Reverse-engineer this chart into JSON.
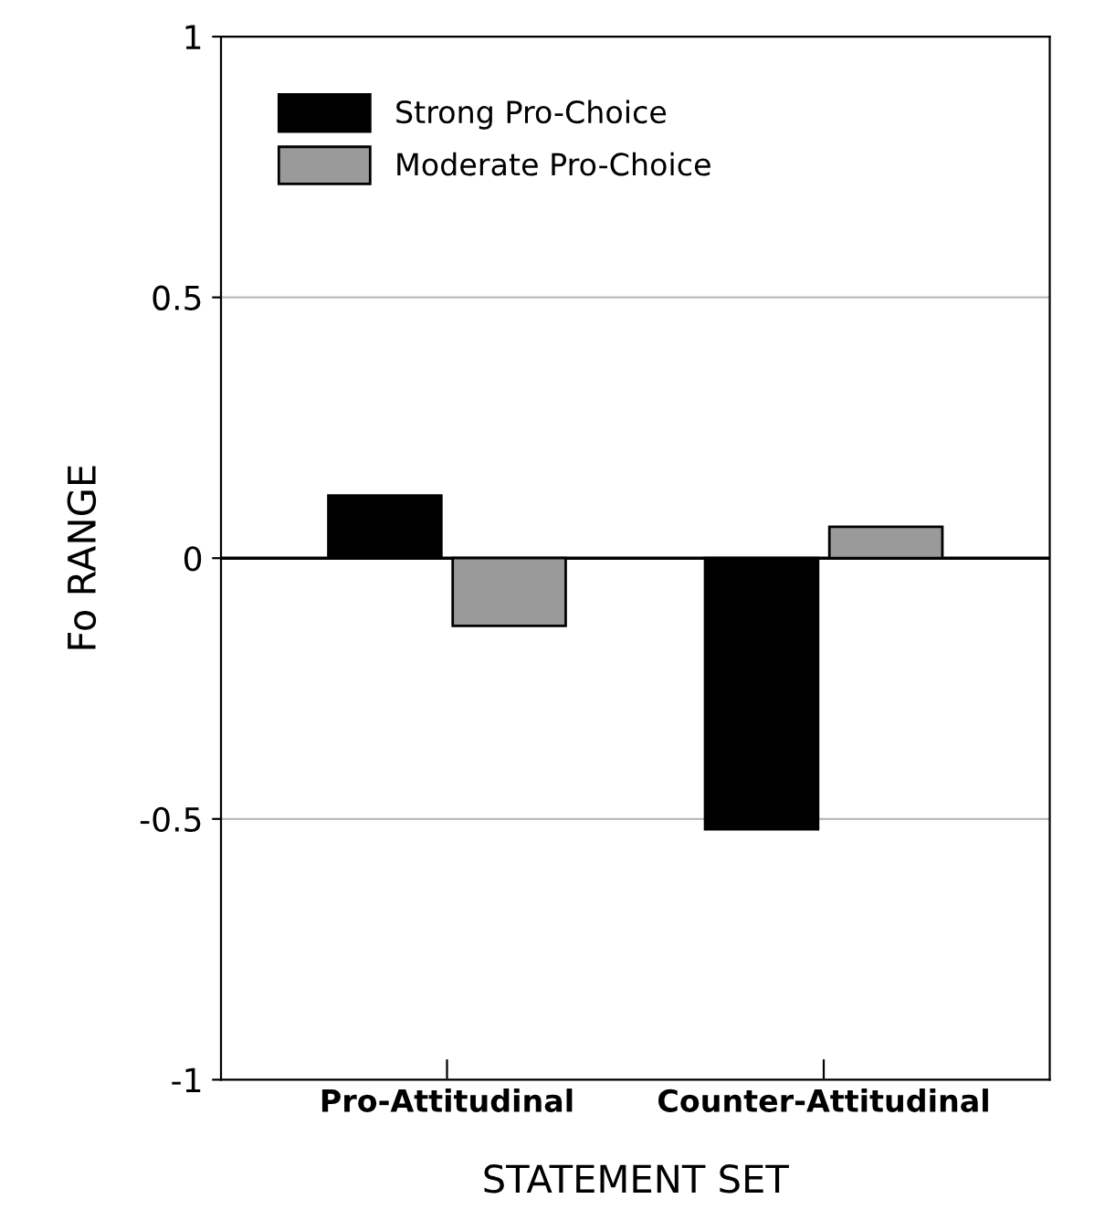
{
  "chart_data": {
    "type": "bar",
    "xlabel": "STATEMENT SET",
    "ylabel": "Fo RANGE",
    "categories": [
      "Pro-Attitudinal",
      "Counter-Attitudinal"
    ],
    "series": [
      {
        "name": "Strong Pro-Choice",
        "color": "#000000",
        "values": [
          0.12,
          -0.52
        ]
      },
      {
        "name": "Moderate Pro-Choice",
        "color": "#9a9a9a",
        "values": [
          -0.13,
          0.06
        ]
      }
    ],
    "ylim": [
      -1,
      1
    ],
    "yticks": [
      -1,
      -0.5,
      0,
      0.5,
      1
    ],
    "grid": "y",
    "legend": "top left",
    "ref_lines": [
      {
        "axis": "y",
        "value": 0,
        "color": "#000000"
      }
    ]
  }
}
